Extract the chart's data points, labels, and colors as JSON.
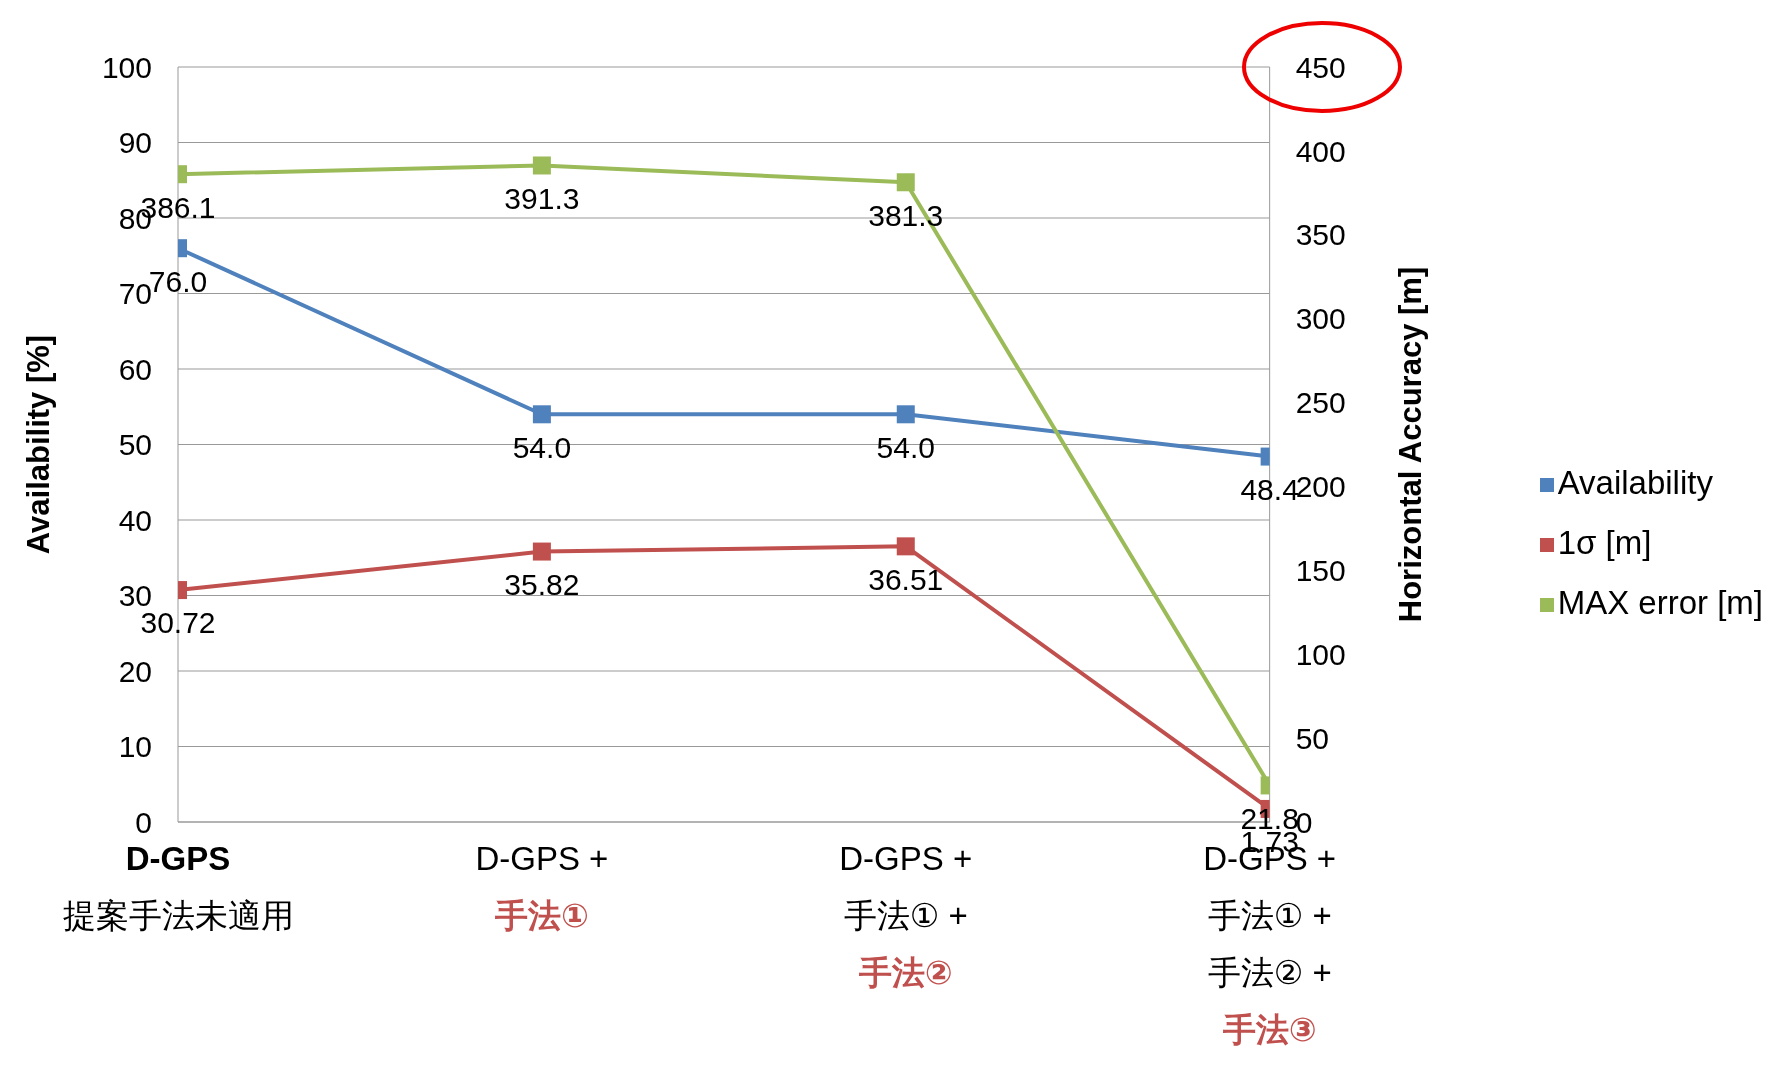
{
  "chart_data": {
    "type": "line",
    "ylabel": "Availability [%]",
    "y2label": "Horizontal Accuracy [m]",
    "categories": [
      "D-GPS\n提案手法未適用",
      "D-GPS +\n手法①",
      "D-GPS +\n手法① +\n手法②",
      "D-GPS +\n手法① +\n手法② +\n手法③"
    ],
    "series": [
      {
        "name": "Availability",
        "color": "#4f81bd",
        "values": [
          76.0,
          54.0,
          54.0,
          48.4
        ],
        "value_labels": [
          "76.0",
          "54.0",
          "54.0",
          "48.4"
        ]
      },
      {
        "name": "1σ [m]",
        "color": "#c0504d",
        "values": [
          30.72,
          35.82,
          36.51,
          1.73
        ]
      },
      {
        "name": "MAX error [m]",
        "color": "#9bbb59",
        "axis": "y2",
        "values": [
          386.1,
          391.3,
          381.3,
          21.8
        ]
      }
    ],
    "ylim": [
      0,
      100
    ],
    "yticks": [
      0,
      10,
      20,
      30,
      40,
      50,
      60,
      70,
      80,
      90,
      100
    ],
    "y2lim": [
      0,
      450
    ],
    "y2ticks": [
      0,
      50,
      100,
      150,
      200,
      250,
      300,
      350,
      400,
      450
    ],
    "grid": "y",
    "legend": "right",
    "marker": "square",
    "line_style": "solid",
    "data_labels": true
  }
}
